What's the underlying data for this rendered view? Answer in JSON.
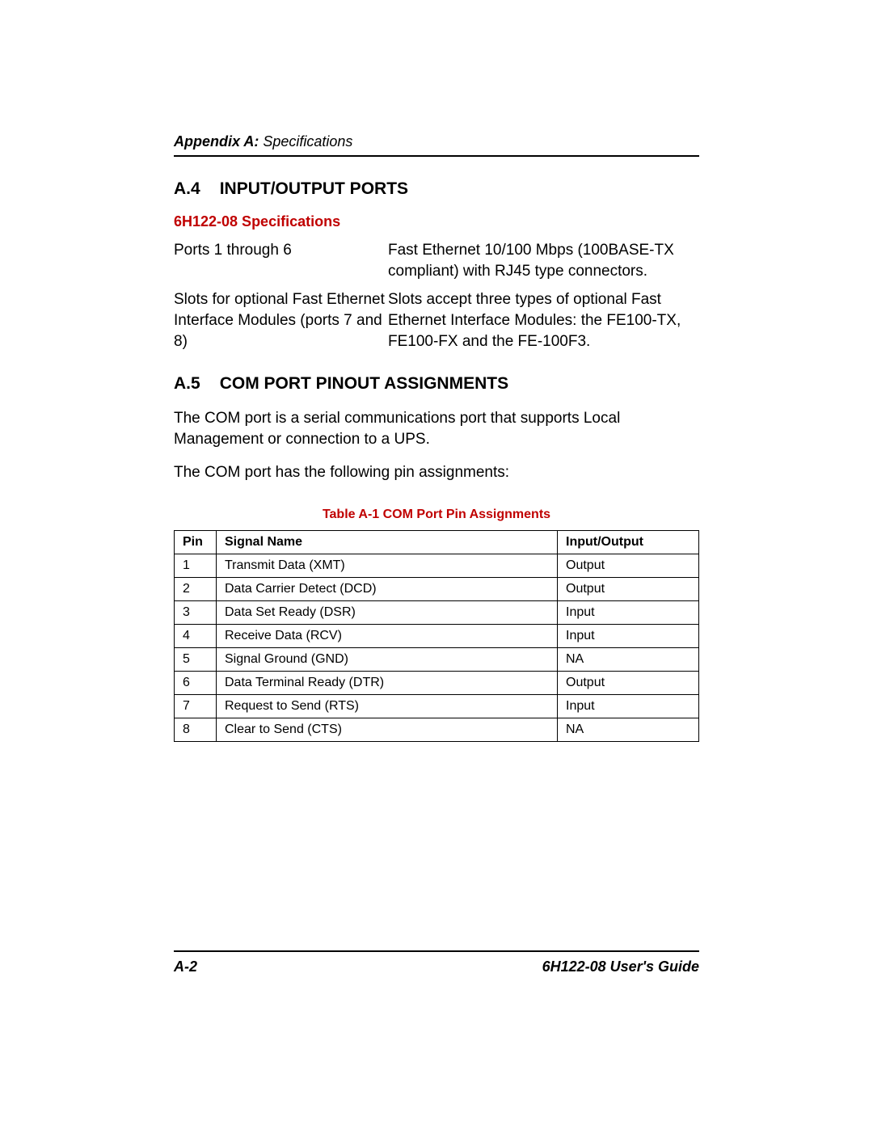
{
  "header": {
    "appendix_label": "Appendix A:",
    "appendix_title": "Specifications"
  },
  "section_a4": {
    "number": "A.4",
    "title": "INPUT/OUTPUT PORTS",
    "sub_heading": "6H122-08 Specifications",
    "rows": [
      {
        "label": "Ports 1 through 6",
        "value": "Fast Ethernet 10/100 Mbps (100BASE-TX compliant) with RJ45 type connectors."
      },
      {
        "label": "Slots for optional Fast Ethernet Interface Modules (ports 7 and 8)",
        "value": "Slots accept three types of optional Fast Ethernet Interface Modules: the FE100-TX, FE100-FX and the FE-100F3."
      }
    ]
  },
  "section_a5": {
    "number": "A.5",
    "title": "COM PORT PINOUT ASSIGNMENTS",
    "para1": "The COM port is a serial communications port that supports Local Management or connection to a UPS.",
    "para2": "The COM port has the following pin assignments:",
    "table_caption": "Table A-1   COM Port Pin Assignments",
    "table": {
      "columns": [
        "Pin",
        "Signal Name",
        "Input/Output"
      ],
      "rows": [
        [
          "1",
          "Transmit Data (XMT)",
          "Output"
        ],
        [
          "2",
          "Data Carrier Detect (DCD)",
          "Output"
        ],
        [
          "3",
          "Data Set Ready (DSR)",
          "Input"
        ],
        [
          "4",
          "Receive Data (RCV)",
          "Input"
        ],
        [
          "5",
          "Signal Ground (GND)",
          "NA"
        ],
        [
          "6",
          "Data Terminal Ready (DTR)",
          "Output"
        ],
        [
          "7",
          "Request to Send (RTS)",
          "Input"
        ],
        [
          "8",
          "Clear to Send (CTS)",
          "NA"
        ]
      ]
    }
  },
  "footer": {
    "page": "A-2",
    "doc": "6H122-08 User's Guide"
  },
  "colors": {
    "accent": "#c00000",
    "text": "#000000",
    "background": "#ffffff"
  }
}
